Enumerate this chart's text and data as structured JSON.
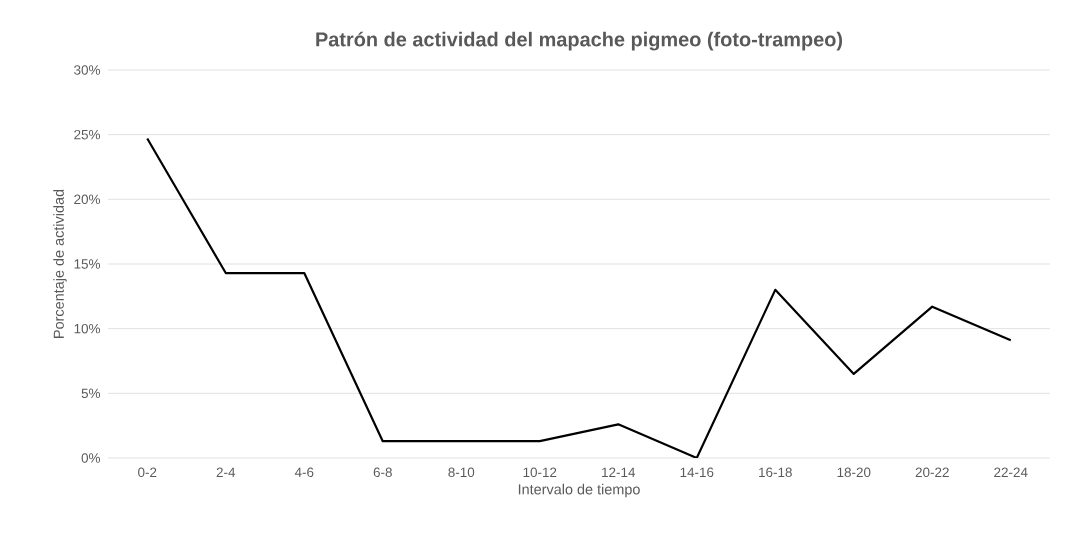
{
  "chart_data": {
    "type": "line",
    "title": "Patrón de actividad del mapache pigmeo (foto-trampeo)",
    "xlabel": "Intervalo de tiempo",
    "ylabel": "Porcentaje de actividad",
    "categories": [
      "0-2",
      "2-4",
      "4-6",
      "6-8",
      "8-10",
      "10-12",
      "12-14",
      "14-16",
      "16-18",
      "18-20",
      "20-22",
      "22-24"
    ],
    "series": [
      {
        "color": "#000000",
        "values": [
          24.7,
          14.3,
          14.3,
          1.3,
          1.3,
          1.3,
          2.6,
          0,
          13.0,
          6.5,
          11.7,
          9.1
        ]
      }
    ],
    "ylim": [
      0,
      30
    ],
    "yticks": [
      {
        "value": 0,
        "label": "0%"
      },
      {
        "value": 5,
        "label": "5%"
      },
      {
        "value": 10,
        "label": "10%"
      },
      {
        "value": 15,
        "label": "15%"
      },
      {
        "value": 20,
        "label": "20%"
      },
      {
        "value": 25,
        "label": "25%"
      },
      {
        "value": 30,
        "label": "30%"
      }
    ],
    "grid": "y",
    "marker": "none",
    "line_style": "solid"
  }
}
